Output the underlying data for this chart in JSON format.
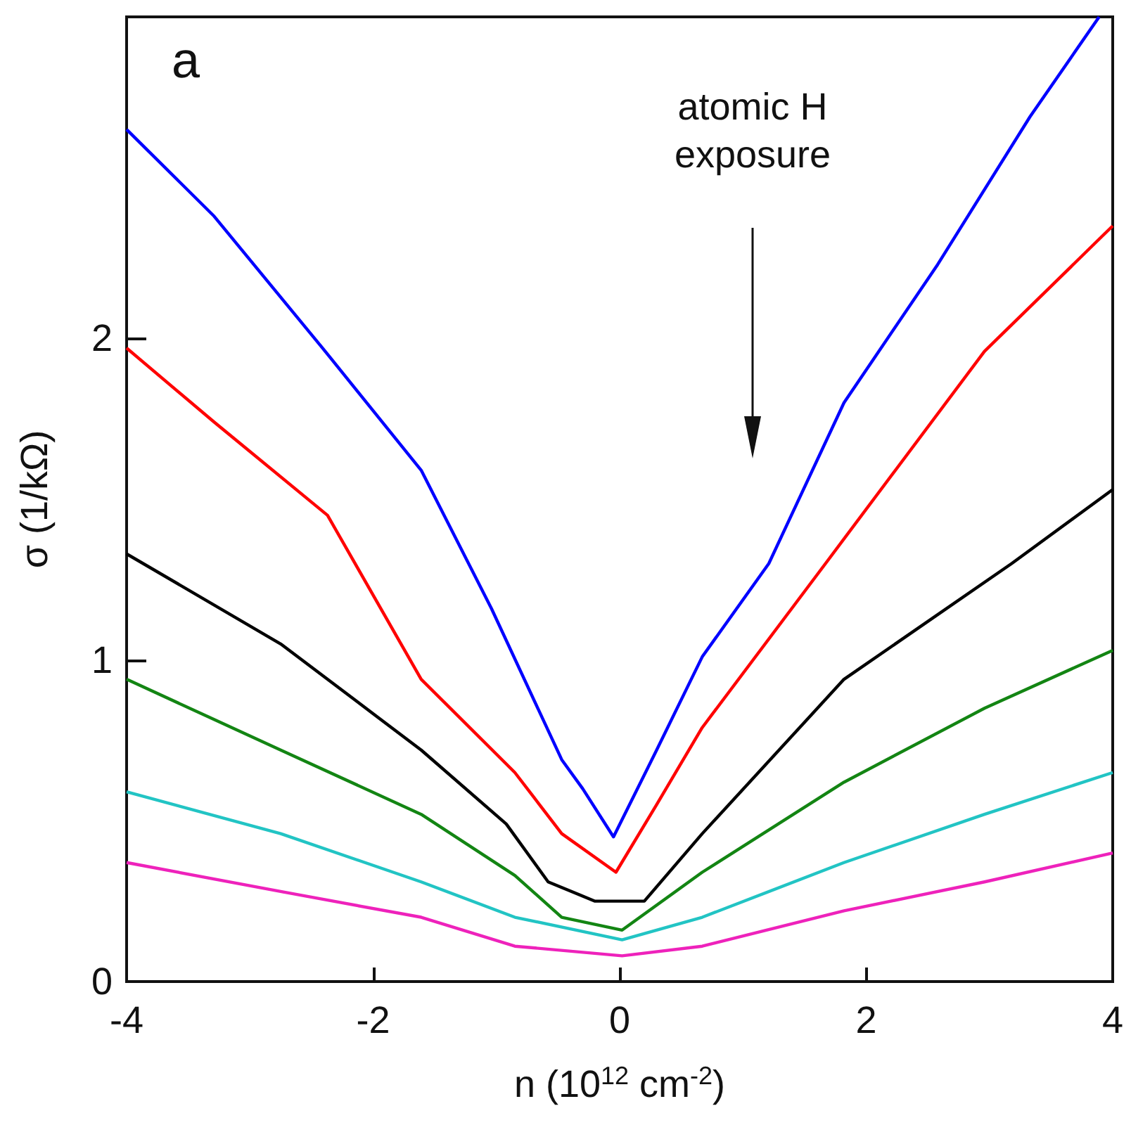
{
  "chart_data": {
    "type": "line",
    "xlabel": "n (10$^{12}$ cm$^{-2}$)",
    "ylabel": "σ (1/kΩ)",
    "annotations": [
      "a",
      "atomic H exposure"
    ],
    "xlim": [
      -4,
      4
    ],
    "xticks": [
      -4,
      -2,
      0,
      2,
      4
    ],
    "ylim": [
      0,
      3
    ],
    "yticks": [
      0,
      1,
      2
    ],
    "grid": false,
    "marker": "none",
    "line_style": "solid",
    "series": [
      {
        "color": "#0000ff",
        "x": [
          -4,
          -3.29,
          -2.41,
          -1.61,
          -1.04,
          -0.47,
          -0.3,
          -0.05,
          0.3,
          0.67,
          1.21,
          1.82,
          2.58,
          3.33,
          3.89
        ],
        "values": [
          2.65,
          2.38,
          1.97,
          1.59,
          1.16,
          0.69,
          0.6,
          0.45,
          0.72,
          1.01,
          1.3,
          1.8,
          2.23,
          2.69,
          3.0
        ]
      },
      {
        "color": "#ff0000",
        "x": [
          -4,
          -3.29,
          -2.37,
          -1.61,
          -0.85,
          -0.47,
          -0.03,
          0.3,
          0.67,
          1.67,
          2.96,
          4
        ],
        "values": [
          1.97,
          1.74,
          1.45,
          0.94,
          0.65,
          0.46,
          0.34,
          0.55,
          0.79,
          1.3,
          1.96,
          2.35
        ]
      },
      {
        "color": "#000000",
        "x": [
          -4,
          -2.75,
          -1.61,
          -0.92,
          -0.58,
          -0.2,
          0.2,
          0.67,
          1.82,
          3.18,
          4
        ],
        "values": [
          1.33,
          1.05,
          0.72,
          0.49,
          0.31,
          0.25,
          0.25,
          0.46,
          0.94,
          1.3,
          1.53
        ]
      },
      {
        "color": "#138513",
        "x": [
          -4,
          -2.75,
          -1.61,
          -0.85,
          -0.47,
          0.02,
          0.67,
          1.82,
          2.96,
          4
        ],
        "values": [
          0.94,
          0.72,
          0.52,
          0.33,
          0.2,
          0.16,
          0.34,
          0.62,
          0.85,
          1.03
        ]
      },
      {
        "color": "#22c4c4",
        "x": [
          -4,
          -2.75,
          -1.61,
          -0.85,
          0.02,
          0.67,
          1.82,
          2.96,
          4
        ],
        "values": [
          0.59,
          0.46,
          0.31,
          0.2,
          0.13,
          0.2,
          0.37,
          0.52,
          0.65
        ]
      },
      {
        "color": "#ee22bb",
        "x": [
          -4,
          -2.75,
          -1.61,
          -0.85,
          0.02,
          0.67,
          1.82,
          2.96,
          4
        ],
        "values": [
          0.37,
          0.28,
          0.2,
          0.11,
          0.08,
          0.11,
          0.22,
          0.31,
          0.4
        ]
      }
    ]
  }
}
